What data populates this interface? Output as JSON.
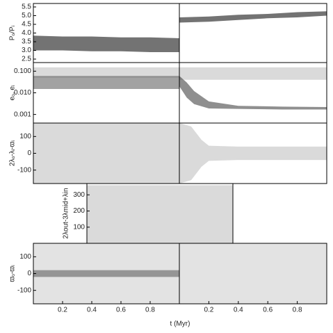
{
  "xlabel": "t (Myr)",
  "chart_data": [
    {
      "type": "band",
      "ylabel": "Pₒ/Pᵢ",
      "xlim": [
        0,
        1
      ],
      "ylim": [
        2.3,
        5.7
      ],
      "yticks": [
        {
          "value": 2.5,
          "label": "2.5"
        },
        {
          "value": 3.0,
          "label": "3.0"
        },
        {
          "value": 3.5,
          "label": "3.5"
        },
        {
          "value": 4.0,
          "label": "4.0"
        },
        {
          "value": 4.5,
          "label": "4.5"
        },
        {
          "value": 5.0,
          "label": "5.0"
        },
        {
          "value": 5.5,
          "label": "5.5"
        }
      ],
      "series": [
        {
          "color": "#000000",
          "x": [
            0,
            0.2,
            0.4,
            0.6,
            0.8,
            1
          ],
          "lower": [
            3.0,
            3.0,
            2.95,
            2.95,
            2.9,
            2.9
          ],
          "upper": [
            3.85,
            3.8,
            3.8,
            3.75,
            3.75,
            3.7
          ]
        }
      ]
    },
    {
      "type": "band",
      "xlim": [
        0,
        1
      ],
      "ylim": [
        2.3,
        5.7
      ],
      "series": [
        {
          "color": "#000000",
          "x": [
            0,
            0.2,
            0.4,
            0.6,
            0.8,
            1
          ],
          "lower": [
            4.6,
            4.65,
            4.75,
            4.85,
            4.9,
            5.0
          ],
          "upper": [
            4.9,
            4.95,
            5.05,
            5.1,
            5.2,
            5.25
          ]
        }
      ]
    },
    {
      "type": "band",
      "ylabel": "eₒ, eᵢ",
      "log": true,
      "xlim": [
        0,
        1
      ],
      "ylim": [
        0.0004,
        0.25
      ],
      "yticks": [
        0.001,
        {
          "value": 0.01,
          "label": "0.010"
        },
        {
          "value": 0.1,
          "label": "0.100"
        }
      ],
      "series": [
        {
          "color": "#bbbbbb",
          "x": [
            0,
            0.5,
            1
          ],
          "lower": [
            0.05,
            0.05,
            0.05
          ],
          "upper": [
            0.15,
            0.15,
            0.15
          ]
        },
        {
          "color": "#555555",
          "x": [
            0,
            0.5,
            1
          ],
          "lower": [
            0.015,
            0.015,
            0.015
          ],
          "upper": [
            0.06,
            0.06,
            0.06
          ]
        }
      ]
    },
    {
      "type": "band",
      "log": true,
      "xlim": [
        0,
        1
      ],
      "ylim": [
        0.0004,
        0.25
      ],
      "series": [
        {
          "color": "#bbbbbb",
          "x": [
            0,
            0.5,
            1
          ],
          "lower": [
            0.04,
            0.04,
            0.04
          ],
          "upper": [
            0.15,
            0.15,
            0.15
          ]
        },
        {
          "color": "#333333",
          "x": [
            0,
            0.05,
            0.1,
            0.2,
            0.4,
            0.7,
            1
          ],
          "lower": [
            0.02,
            0.006,
            0.003,
            0.0019,
            0.0018,
            0.0017,
            0.0017
          ],
          "upper": [
            0.06,
            0.03,
            0.012,
            0.004,
            0.0025,
            0.0023,
            0.0022
          ]
        }
      ]
    },
    {
      "type": "band",
      "ylabel": "2λₒ-λᵢ-ϖᵢ",
      "xlim": [
        0,
        1
      ],
      "ylim": [
        -180,
        180
      ],
      "yticks": [
        -100,
        0,
        100
      ],
      "series": [
        {
          "color": "#bbbbbb",
          "x": [
            0,
            1
          ],
          "lower": [
            -180,
            -180
          ],
          "upper": [
            180,
            180
          ]
        }
      ]
    },
    {
      "type": "band",
      "xlim": [
        0,
        1
      ],
      "ylim": [
        -180,
        180
      ],
      "series": [
        {
          "color": "#bbbbbb",
          "x": [
            0,
            0.08,
            0.15,
            0.2,
            0.4,
            1
          ],
          "lower": [
            -180,
            -160,
            -80,
            -45,
            -40,
            -40
          ],
          "upper": [
            180,
            160,
            80,
            45,
            40,
            40
          ]
        }
      ]
    },
    {
      "type": "band",
      "ylabel": "2λout-3λmid+λin",
      "xlim": [
        0,
        1
      ],
      "ylim": [
        0,
        370
      ],
      "yticks": [
        100,
        200,
        300
      ],
      "series": [
        {
          "color": "#bbbbbb",
          "x": [
            0,
            1
          ],
          "lower": [
            0,
            0
          ],
          "upper": [
            360,
            360
          ]
        }
      ]
    },
    {
      "type": "band",
      "ylabel": "ϖₒ-ϖᵢ",
      "xlim": [
        0,
        1
      ],
      "ylim": [
        -180,
        180
      ],
      "yticks": [
        -100,
        0,
        100
      ],
      "xticks": [
        0.2,
        0.4,
        0.6,
        0.8
      ],
      "series": [
        {
          "color": "#cccccc",
          "x": [
            0,
            1
          ],
          "lower": [
            -180,
            -180
          ],
          "upper": [
            180,
            180
          ]
        },
        {
          "color": "#555555",
          "x": [
            0,
            1
          ],
          "lower": [
            -20,
            -20
          ],
          "upper": [
            20,
            20
          ]
        }
      ]
    },
    {
      "type": "band",
      "xlim": [
        0,
        1
      ],
      "ylim": [
        -180,
        180
      ],
      "xticks": [
        0.2,
        0.4,
        0.6,
        0.8
      ],
      "series": [
        {
          "color": "#cccccc",
          "x": [
            0,
            1
          ],
          "lower": [
            -180,
            -180
          ],
          "upper": [
            180,
            180
          ]
        }
      ]
    }
  ]
}
